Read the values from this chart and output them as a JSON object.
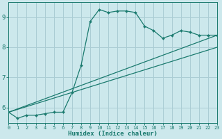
{
  "xlabel": "Humidex (Indice chaleur)",
  "bg_color": "#cce8ec",
  "line_color": "#1a7a6e",
  "grid_color": "#aacdd4",
  "xlim": [
    0,
    23
  ],
  "ylim": [
    5.5,
    9.5
  ],
  "yticks": [
    6,
    7,
    8,
    9
  ],
  "xticks": [
    0,
    1,
    2,
    3,
    4,
    5,
    6,
    7,
    8,
    9,
    10,
    11,
    12,
    13,
    14,
    15,
    16,
    17,
    18,
    19,
    20,
    21,
    22,
    23
  ],
  "main_x": [
    0,
    1,
    2,
    3,
    4,
    5,
    6,
    7,
    8,
    9,
    10,
    11,
    12,
    13,
    14,
    15,
    16,
    17,
    18,
    19,
    20,
    21,
    22,
    23
  ],
  "main_y": [
    5.85,
    5.65,
    5.75,
    5.75,
    5.8,
    5.85,
    5.85,
    6.5,
    7.4,
    8.85,
    9.25,
    9.15,
    9.2,
    9.2,
    9.15,
    8.7,
    8.55,
    8.3,
    8.4,
    8.55,
    8.5,
    8.4,
    8.4,
    8.4
  ],
  "trend1_x": [
    0,
    23
  ],
  "trend1_y": [
    5.85,
    8.4
  ],
  "trend2_x": [
    0,
    23
  ],
  "trend2_y": [
    5.85,
    8.0
  ]
}
